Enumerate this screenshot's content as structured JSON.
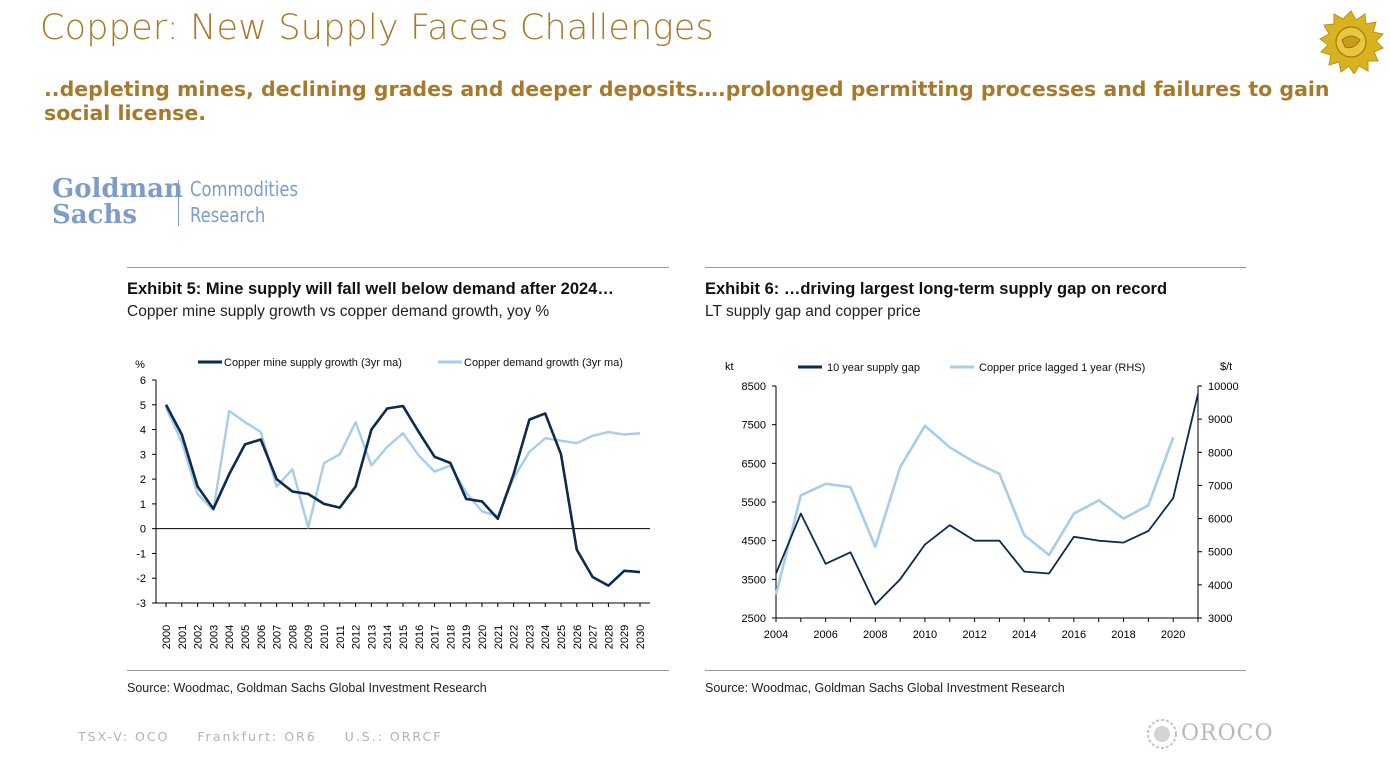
{
  "slide": {
    "title": "Copper: New Supply Faces Challenges",
    "subtitle": "..depleting mines, declining grades and deeper deposits….prolonged permitting processes and failures to gain social license.",
    "brand_color": "#a8792a"
  },
  "gs_logo": {
    "name": "Goldman Sachs",
    "unit": "Commodities Research"
  },
  "footer": {
    "tickers": [
      "TSX-V: OCO",
      "Frankfurt: OR6",
      "U.S.: ORRCF"
    ],
    "brand": "OROCO"
  },
  "chart_data": [
    {
      "type": "line",
      "title": "Exhibit 5: Mine supply will fall well below demand after 2024…",
      "subtitle": "Copper mine supply growth vs copper demand growth, yoy %",
      "ylabel": "%",
      "source": "Source: Woodmac, Goldman Sachs Global Investment Research",
      "ylim": [
        -3,
        6
      ],
      "yticks": [
        6,
        5,
        4,
        3,
        2,
        1,
        0,
        -1,
        -2,
        -3
      ],
      "x": [
        2000,
        2001,
        2002,
        2003,
        2004,
        2005,
        2006,
        2007,
        2008,
        2009,
        2010,
        2011,
        2012,
        2013,
        2014,
        2015,
        2016,
        2017,
        2018,
        2019,
        2020,
        2021,
        2022,
        2023,
        2024,
        2025,
        2026,
        2027,
        2028,
        2029,
        2030
      ],
      "legend_position": "top",
      "grid": false,
      "series": [
        {
          "name": "Copper mine supply growth (3yr ma)",
          "color": "#0d2b4e",
          "values": [
            5.0,
            3.8,
            1.7,
            0.8,
            2.2,
            3.4,
            3.6,
            2.0,
            1.5,
            1.4,
            1.0,
            0.85,
            1.7,
            4.0,
            4.85,
            4.95,
            3.9,
            2.9,
            2.65,
            1.2,
            1.1,
            0.4,
            2.2,
            4.4,
            4.65,
            3.0,
            -0.85,
            -1.95,
            -2.3,
            -1.7,
            -1.75
          ]
        },
        {
          "name": "Copper demand growth (3yr ma)",
          "color": "#a9cce8",
          "values": [
            4.9,
            3.5,
            1.4,
            0.75,
            4.75,
            4.3,
            3.9,
            1.7,
            2.4,
            0.05,
            2.65,
            3.0,
            4.3,
            2.55,
            3.3,
            3.85,
            2.95,
            2.3,
            2.55,
            1.45,
            0.7,
            0.5,
            2.05,
            3.1,
            3.65,
            3.55,
            3.45,
            3.75,
            3.9,
            3.8,
            3.85
          ]
        }
      ]
    },
    {
      "type": "line",
      "title": "Exhibit 6: …driving largest long-term supply gap on record",
      "subtitle": "LT supply gap and copper price",
      "ylabel": "kt",
      "y2label": "$/t",
      "source": "Source: Woodmac, Goldman Sachs Global Investment Research",
      "ylim": [
        2500,
        8500
      ],
      "y2lim": [
        3000,
        10000
      ],
      "yticks": [
        8500,
        7500,
        6500,
        5500,
        4500,
        3500,
        2500
      ],
      "y2ticks": [
        10000,
        9000,
        8000,
        7000,
        6000,
        5000,
        4000,
        3000
      ],
      "xticks": [
        2004,
        2006,
        2008,
        2010,
        2012,
        2014,
        2016,
        2018,
        2020
      ],
      "x": [
        2004,
        2005,
        2006,
        2007,
        2008,
        2009,
        2010,
        2011,
        2012,
        2013,
        2014,
        2015,
        2016,
        2017,
        2018,
        2019,
        2020,
        2021
      ],
      "legend_position": "top",
      "grid": false,
      "series": [
        {
          "name": "10 year supply gap",
          "axis": "left",
          "color": "#0d2b4e",
          "values": [
            3650,
            5200,
            3900,
            4200,
            2850,
            3500,
            4400,
            4900,
            4500,
            4500,
            3700,
            3650,
            4600,
            4500,
            4450,
            4750,
            5600,
            8300
          ]
        },
        {
          "name": "Copper price lagged 1 year (RHS)",
          "axis": "right",
          "color": "#a9cce8",
          "values": [
            3700,
            6700,
            7050,
            6950,
            5150,
            7550,
            8800,
            8150,
            7700,
            7350,
            5500,
            4900,
            6150,
            6550,
            6000,
            6400,
            8450,
            null
          ]
        }
      ]
    }
  ]
}
